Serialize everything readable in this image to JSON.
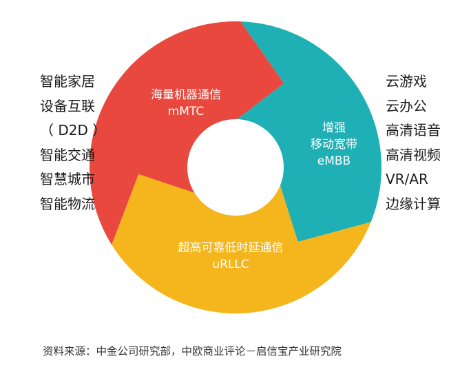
{
  "left_list": [
    "智能家居",
    "设备互联",
    "（ D2D ）",
    "智能交通",
    "智慧城市",
    "智能物流"
  ],
  "right_list": [
    "云游戏",
    "云办公",
    "高清语音",
    "高清视频",
    "VR/AR",
    "边缘计算"
  ],
  "segments": {
    "mmtc": {
      "title": "海量机器通信",
      "abbr": "mMTC",
      "color": "#e8483e"
    },
    "embb": {
      "title_line1": "增强",
      "title_line2": "移动宽带",
      "abbr": "eMBB",
      "color": "#1fb0b5"
    },
    "urllc": {
      "title": "超高可靠低时延通信",
      "abbr": "uRLLC",
      "color": "#f5b51c"
    }
  },
  "source": "资料来源：中金公司研究部，中欧商业评论－启信宝产业研究院"
}
